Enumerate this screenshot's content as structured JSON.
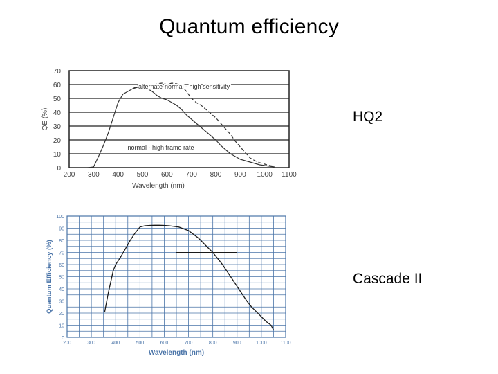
{
  "slide": {
    "title": "Quantum efficiency",
    "labels": [
      "HQ2",
      "Cascade II"
    ]
  },
  "chart_data": [
    {
      "type": "line",
      "title": "",
      "xlabel": "Wavelength (nm)",
      "ylabel": "QE (%)",
      "xlim": [
        200,
        1100
      ],
      "ylim": [
        0,
        70
      ],
      "xticks": [
        "200",
        "300",
        "400",
        "500",
        "600",
        "700",
        "800",
        "900",
        "1000",
        "1100"
      ],
      "yticks": [
        "0",
        "10",
        "20",
        "30",
        "40",
        "50",
        "60",
        "70"
      ],
      "grid": "horizontal",
      "series": [
        {
          "name": "normal - high frame rate",
          "style": "solid",
          "x": [
            275,
            300,
            320,
            340,
            360,
            380,
            400,
            420,
            440,
            460,
            480,
            500,
            520,
            540,
            560,
            580,
            600,
            620,
            640,
            660,
            680,
            700,
            720,
            740,
            760,
            780,
            800,
            820,
            840,
            860,
            880,
            900,
            920,
            940,
            960,
            980,
            1000,
            1020,
            1040
          ],
          "y": [
            0,
            0.5,
            8,
            16,
            25,
            36,
            47,
            53,
            55,
            57,
            58,
            59,
            57,
            55,
            52,
            50,
            49,
            47,
            45,
            42,
            38,
            35,
            32,
            29,
            26,
            23,
            20,
            16,
            13,
            10,
            8,
            6,
            5,
            4,
            3,
            2,
            1.5,
            1,
            0.5
          ]
        },
        {
          "name": "alternate-normal - high sensitivity",
          "style": "dashed",
          "x": [
            460,
            480,
            500,
            520,
            540,
            560,
            580,
            600,
            620,
            640,
            660,
            680,
            700,
            720,
            740,
            760,
            780,
            800,
            820,
            840,
            860,
            880,
            900,
            920,
            940,
            960,
            980,
            1000,
            1020,
            1040
          ],
          "y": [
            57,
            59,
            60,
            59.5,
            59,
            60.5,
            61,
            60,
            61,
            60.5,
            59,
            55,
            50,
            47,
            45,
            42,
            39,
            36,
            32,
            28,
            24,
            19,
            15,
            11,
            7,
            5,
            3.5,
            2.5,
            1.5,
            1
          ]
        }
      ],
      "annotations": [
        "alternate-normal - high sensitivity",
        "normal - high frame rate"
      ]
    },
    {
      "type": "line",
      "title": "",
      "xlabel": "Wavelength (nm)",
      "ylabel": "Quantum Efficiency (%)",
      "xlim": [
        200,
        1100
      ],
      "ylim": [
        0,
        100
      ],
      "xticks": [
        "200",
        "300",
        "400",
        "500",
        "600",
        "700",
        "800",
        "900",
        "1000",
        "1100"
      ],
      "yticks": [
        "0",
        "10",
        "20",
        "30",
        "40",
        "50",
        "60",
        "70",
        "80",
        "90",
        "100"
      ],
      "grid": "both",
      "series": [
        {
          "name": "",
          "style": "solid",
          "x": [
            355,
            370,
            390,
            400,
            420,
            440,
            460,
            480,
            500,
            520,
            540,
            560,
            580,
            600,
            620,
            640,
            660,
            680,
            700,
            720,
            740,
            760,
            780,
            800,
            820,
            840,
            860,
            880,
            900,
            920,
            940,
            960,
            980,
            1000,
            1020,
            1040,
            1050
          ],
          "y": [
            21,
            37,
            55,
            60,
            66,
            73,
            80,
            86,
            91,
            92,
            92.3,
            92.4,
            92.4,
            92.3,
            92,
            91.5,
            91,
            89.5,
            88,
            85,
            82,
            78,
            74,
            70,
            65,
            60,
            54,
            48,
            42,
            36,
            30,
            25,
            21,
            17,
            13,
            10,
            6
          ]
        },
        {
          "name": "",
          "style": "solid",
          "x": [
            650,
            900
          ],
          "y": [
            70,
            70
          ]
        }
      ]
    }
  ]
}
